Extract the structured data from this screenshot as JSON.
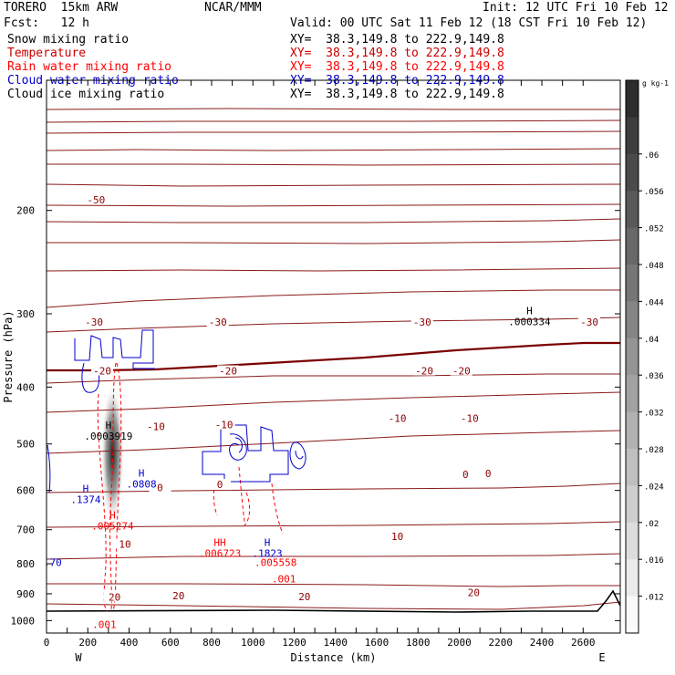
{
  "header": {
    "model": "TORERO  15km ARW",
    "center": "NCAR/MMM",
    "init": "Init: 12 UTC Fri 10 Feb 12",
    "fcst": "Fcst:   12 h",
    "valid": "Valid: 00 UTC Sat 11 Feb 12 (18 CST Fri 10 Feb 12)"
  },
  "fields": [
    {
      "name": "Snow mixing ratio",
      "xy": "XY=  38.3,149.8 to 222.9,149.8",
      "color": "#000000"
    },
    {
      "name": "Temperature",
      "xy": "XY=  38.3,149.8 to 222.9,149.8",
      "color": "#c80000"
    },
    {
      "name": "Rain water mixing ratio",
      "xy": "XY=  38.3,149.8 to 222.9,149.8",
      "color": "#ff0000"
    },
    {
      "name": "Cloud water mixing ratio",
      "xy": "XY=  38.3,149.8 to 222.9,149.8",
      "color": "#0000cc"
    },
    {
      "name": "Cloud ice mixing ratio",
      "xy": "XY=  38.3,149.8 to 222.9,149.8",
      "color": "#000000"
    }
  ],
  "chart_data": {
    "type": "cross-section contour",
    "xlabel": "Distance (km)",
    "ylabel": "Pressure (hPa)",
    "xlim": [
      0,
      2780
    ],
    "ylim": [
      1050,
      120
    ],
    "y_scale": "log",
    "x_ticks": [
      0,
      100,
      200,
      300,
      400,
      500,
      600,
      700,
      800,
      900,
      1000,
      1100,
      1200,
      1300,
      1400,
      1500,
      1600,
      1700,
      1800,
      1900,
      2000,
      2100,
      2200,
      2300,
      2400,
      2500,
      2600
    ],
    "x_tick_labels": [
      "0",
      "200",
      "400",
      "600",
      "800",
      "1000",
      "1200",
      "1400",
      "1600",
      "1800",
      "2000",
      "2200",
      "2400",
      "2600"
    ],
    "y_ticks": [
      200,
      300,
      400,
      500,
      600,
      700,
      800,
      900,
      1000
    ],
    "end_labels": {
      "left": "W",
      "right": "E"
    },
    "colorbar": {
      "unit": "g kg-1",
      "ticks": [
        ".012",
        ".016",
        ".02",
        ".024",
        ".028",
        ".032",
        ".036",
        ".04",
        ".044",
        ".048",
        ".052",
        ".056",
        ".06"
      ]
    },
    "temperature_labels": [
      {
        "text": "-50",
        "x": 240,
        "p": 193
      },
      {
        "text": "-30",
        "x": 230,
        "p": 312
      },
      {
        "text": "-30",
        "x": 830,
        "p": 312
      },
      {
        "text": "-30",
        "x": 1820,
        "p": 312
      },
      {
        "text": "-30",
        "x": 2630,
        "p": 312
      },
      {
        "text": "-20",
        "x": 270,
        "p": 378
      },
      {
        "text": "-20",
        "x": 880,
        "p": 378
      },
      {
        "text": "-20",
        "x": 1830,
        "p": 378
      },
      {
        "text": "-20",
        "x": 2010,
        "p": 378
      },
      {
        "text": "-10",
        "x": 530,
        "p": 470
      },
      {
        "text": "-10",
        "x": 860,
        "p": 467
      },
      {
        "text": "-10",
        "x": 1700,
        "p": 455
      },
      {
        "text": "-10",
        "x": 2050,
        "p": 455
      },
      {
        "text": "0",
        "x": 550,
        "p": 598
      },
      {
        "text": "0",
        "x": 840,
        "p": 590
      },
      {
        "text": "0",
        "x": 2030,
        "p": 567
      },
      {
        "text": "0",
        "x": 2140,
        "p": 565
      },
      {
        "text": "10",
        "x": 380,
        "p": 746
      },
      {
        "text": "10",
        "x": 1700,
        "p": 724
      },
      {
        "text": "20",
        "x": 330,
        "p": 918
      },
      {
        "text": "20",
        "x": 640,
        "p": 913
      },
      {
        "text": "20",
        "x": 1250,
        "p": 916
      },
      {
        "text": "20",
        "x": 2070,
        "p": 902
      }
    ],
    "extrema": [
      {
        "mark": "H",
        "value": ".000334",
        "x": 2340,
        "p": 309,
        "color": "#000000"
      },
      {
        "mark": "H",
        "value": ".0003919",
        "x": 300,
        "p": 485,
        "color": "#000000"
      },
      {
        "mark": "H",
        "value": ".0808",
        "x": 460,
        "p": 585,
        "color": "#0000cc"
      },
      {
        "mark": "H",
        "value": ".1374",
        "x": 190,
        "p": 622,
        "color": "#0000cc"
      },
      {
        "mark": "H",
        "value": ".005274",
        "x": 320,
        "p": 690,
        "color": "#ff0000"
      },
      {
        "mark": "HH",
        "value": ".006723",
        "x": 840,
        "p": 768,
        "color": "#ff0000"
      },
      {
        "mark": "H",
        "value": ".1823",
        "x": 1070,
        "p": 768,
        "color": "#0000cc"
      },
      {
        "mark": "",
        "value": ".005558",
        "x": 1110,
        "p": 795,
        "color": "#ff0000"
      },
      {
        "mark": "",
        "value": ".001",
        "x": 1150,
        "p": 848,
        "color": "#ff0000"
      },
      {
        "mark": "",
        "value": ".001",
        "x": 280,
        "p": 1015,
        "color": "#ff0000"
      },
      {
        "mark": "",
        "value": ".70",
        "x": 30,
        "p": 795,
        "color": "#0000cc"
      }
    ],
    "snow_max": {
      "x": 320,
      "p": 520,
      "value": 0.06
    }
  }
}
